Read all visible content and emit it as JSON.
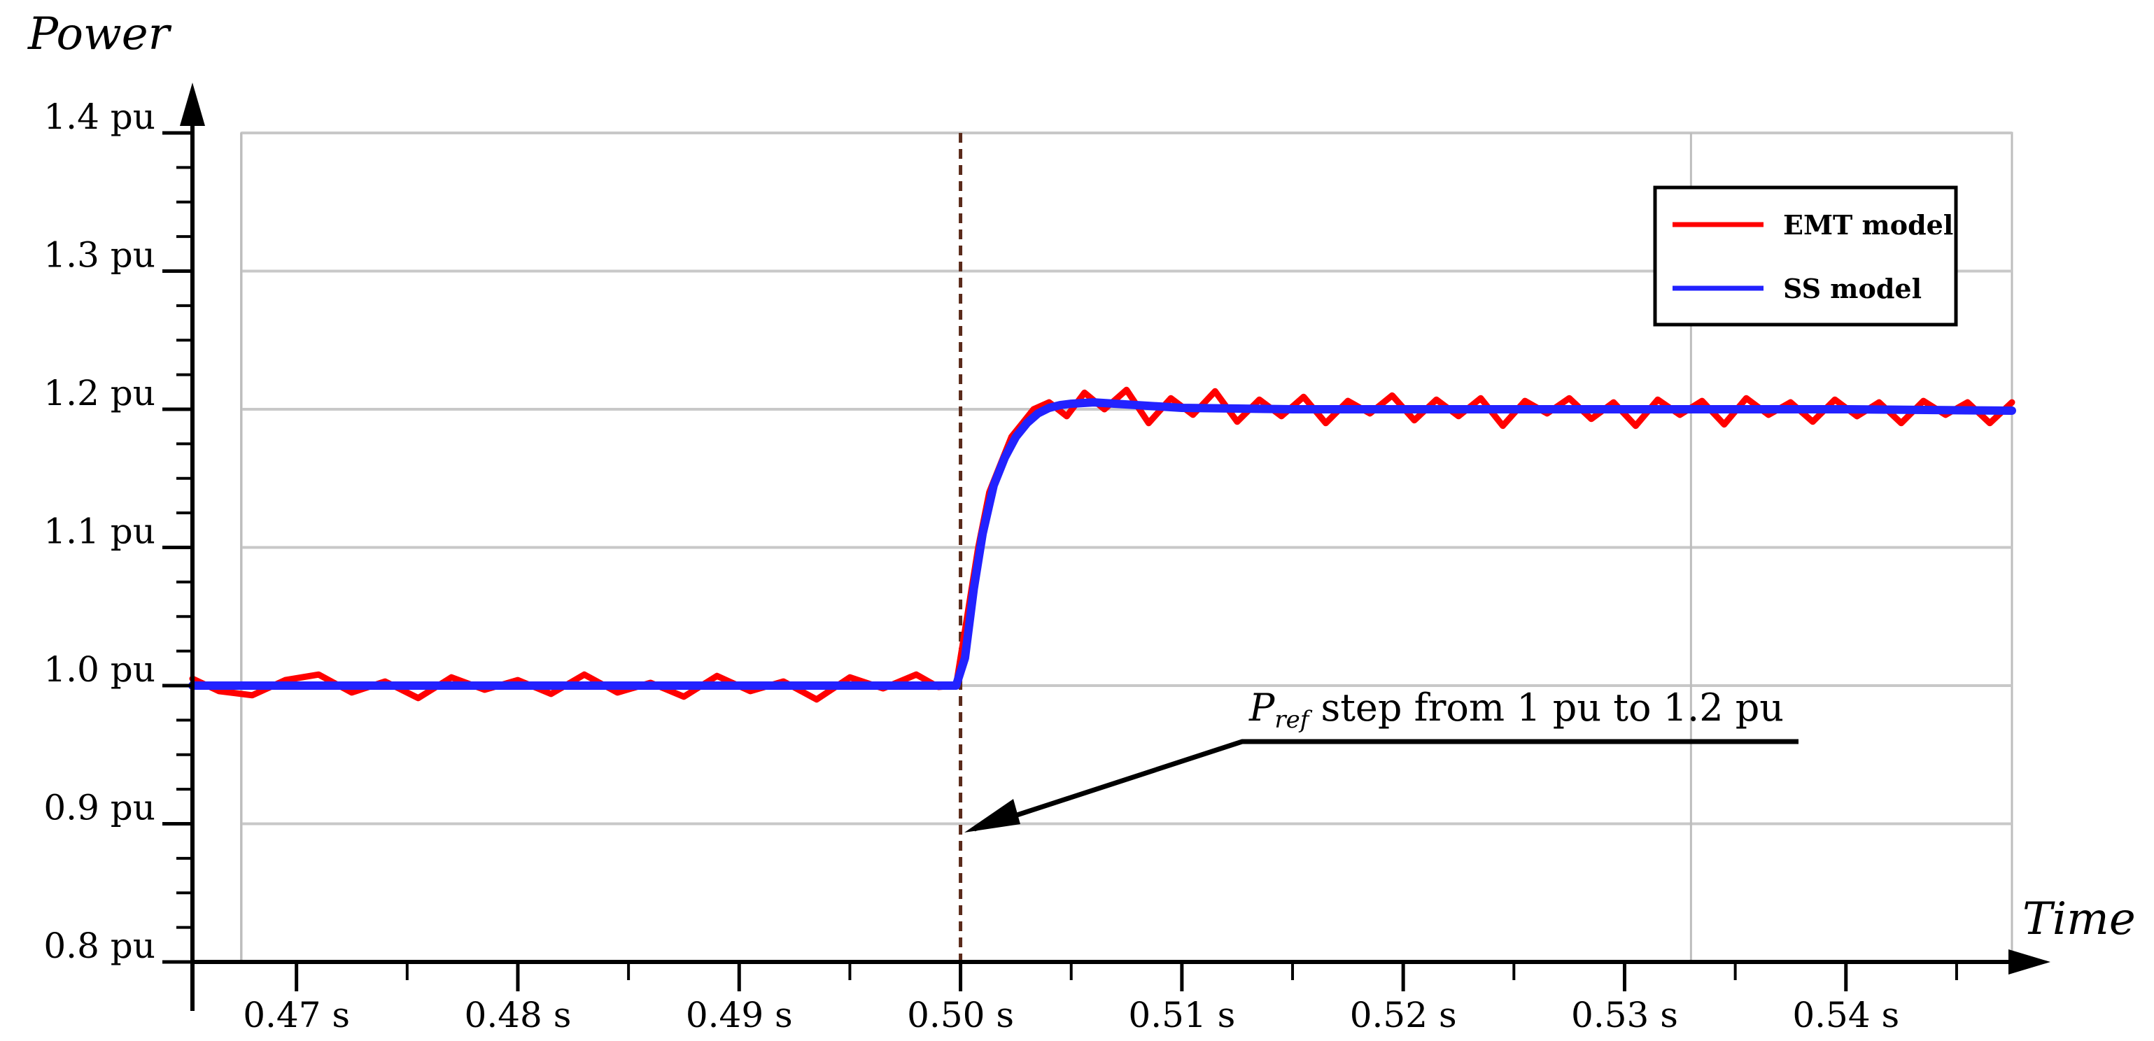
{
  "chart_data": {
    "type": "line",
    "xlabel": "Time",
    "ylabel": "Power",
    "xlim": [
      0.4653,
      0.5475
    ],
    "ylim": [
      0.8,
      1.4
    ],
    "x_ticks": [
      {
        "value": 0.47,
        "label": "0.47 s"
      },
      {
        "value": 0.48,
        "label": "0.48 s"
      },
      {
        "value": 0.49,
        "label": "0.49 s"
      },
      {
        "value": 0.5,
        "label": "0.50 s"
      },
      {
        "value": 0.51,
        "label": "0.51 s"
      },
      {
        "value": 0.52,
        "label": "0.52 s"
      },
      {
        "value": 0.53,
        "label": "0.53 s"
      },
      {
        "value": 0.54,
        "label": "0.54 s"
      }
    ],
    "y_ticks": [
      {
        "value": 0.8,
        "label": "0.8 pu"
      },
      {
        "value": 0.9,
        "label": "0.9 pu"
      },
      {
        "value": 1.0,
        "label": "1.0 pu"
      },
      {
        "value": 1.1,
        "label": "1.1 pu"
      },
      {
        "value": 1.2,
        "label": "1.2 pu"
      },
      {
        "value": 1.3,
        "label": "1.3 pu"
      },
      {
        "value": 1.4,
        "label": "1.4 pu"
      }
    ],
    "grid": true,
    "legend_position": "top-right",
    "step_time": 0.5,
    "series": [
      {
        "name": "EMT model",
        "color": "#ff0000",
        "x": [
          0.4653,
          0.4665,
          0.468,
          0.4695,
          0.471,
          0.4725,
          0.474,
          0.4755,
          0.477,
          0.4785,
          0.48,
          0.4815,
          0.483,
          0.4845,
          0.486,
          0.4875,
          0.489,
          0.4905,
          0.492,
          0.4935,
          0.495,
          0.4965,
          0.498,
          0.499,
          0.4998,
          0.5003,
          0.5008,
          0.5013,
          0.5018,
          0.5023,
          0.5028,
          0.5033,
          0.504,
          0.5048,
          0.5056,
          0.5065,
          0.5075,
          0.5085,
          0.5095,
          0.5105,
          0.5115,
          0.5125,
          0.5135,
          0.5145,
          0.5155,
          0.5165,
          0.5175,
          0.5185,
          0.5195,
          0.5205,
          0.5215,
          0.5225,
          0.5235,
          0.5245,
          0.5255,
          0.5265,
          0.5275,
          0.5285,
          0.5295,
          0.5305,
          0.5315,
          0.5325,
          0.5335,
          0.5345,
          0.5355,
          0.5365,
          0.5375,
          0.5385,
          0.5395,
          0.5405,
          0.5415,
          0.5425,
          0.5435,
          0.5445,
          0.5455,
          0.5465,
          0.5475
        ],
        "y": [
          1.005,
          0.996,
          0.993,
          1.004,
          1.008,
          0.995,
          1.003,
          0.991,
          1.006,
          0.997,
          1.004,
          0.994,
          1.008,
          0.995,
          1.002,
          0.992,
          1.007,
          0.996,
          1.003,
          0.99,
          1.006,
          0.998,
          1.008,
          0.999,
          1.0,
          1.05,
          1.1,
          1.14,
          1.16,
          1.18,
          1.19,
          1.2,
          1.205,
          1.195,
          1.212,
          1.2,
          1.214,
          1.19,
          1.208,
          1.196,
          1.213,
          1.191,
          1.207,
          1.195,
          1.209,
          1.19,
          1.206,
          1.197,
          1.21,
          1.192,
          1.207,
          1.195,
          1.208,
          1.188,
          1.206,
          1.197,
          1.208,
          1.193,
          1.205,
          1.188,
          1.207,
          1.196,
          1.206,
          1.189,
          1.208,
          1.196,
          1.205,
          1.191,
          1.207,
          1.195,
          1.205,
          1.19,
          1.206,
          1.196,
          1.205,
          1.19,
          1.205
        ]
      },
      {
        "name": "SS model",
        "color": "#2222ff",
        "x": [
          0.4653,
          0.47,
          0.48,
          0.49,
          0.498,
          0.4998,
          0.5002,
          0.5006,
          0.501,
          0.5015,
          0.502,
          0.5025,
          0.503,
          0.5035,
          0.504,
          0.5045,
          0.505,
          0.506,
          0.507,
          0.508,
          0.51,
          0.515,
          0.52,
          0.53,
          0.54,
          0.5475
        ],
        "y": [
          1.0,
          1.0,
          1.0,
          1.0,
          1.0,
          1.0,
          1.02,
          1.07,
          1.11,
          1.145,
          1.165,
          1.18,
          1.19,
          1.197,
          1.201,
          1.203,
          1.204,
          1.205,
          1.204,
          1.203,
          1.201,
          1.2,
          1.2,
          1.2,
          1.2,
          1.199
        ]
      }
    ],
    "annotation": {
      "prefix": "P",
      "subscript": "ref",
      "text": " step from 1 pu to 1.2 pu",
      "target_x": 0.5,
      "target_y": 0.895
    }
  }
}
